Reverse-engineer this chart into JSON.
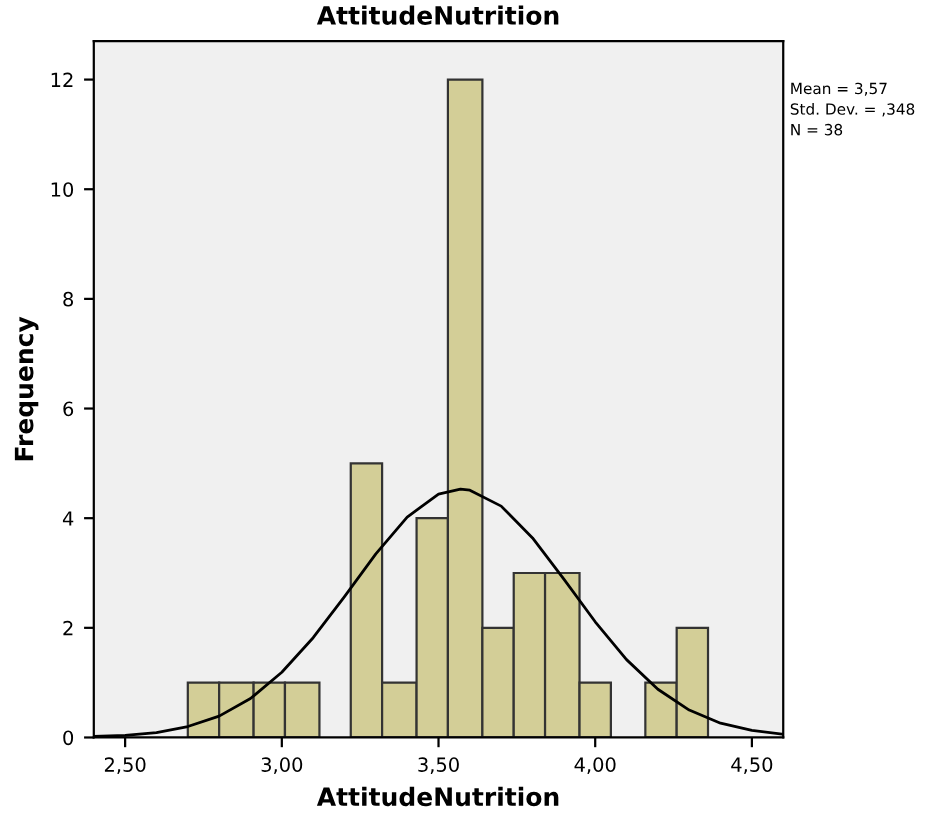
{
  "chart_data": {
    "type": "histogram",
    "title": "AttitudeNutrition",
    "xlabel": "AttitudeNutrition",
    "ylabel": "Frequency",
    "series": [
      {
        "color": "#d3ce97",
        "bins": [
          2.7,
          2.8,
          2.91,
          3.01,
          3.12,
          3.22,
          3.32,
          3.43,
          3.53,
          3.64,
          3.74,
          3.84,
          3.95,
          4.05,
          4.16,
          4.26,
          4.36
        ],
        "values": [
          1,
          1,
          1,
          1,
          0,
          5,
          1,
          4,
          12,
          2,
          3,
          3,
          1,
          0,
          1,
          2
        ]
      },
      {
        "type": "line",
        "color": "#000000",
        "x": [
          2.4,
          2.5,
          2.6,
          2.7,
          2.8,
          2.9,
          3.0,
          3.1,
          3.2,
          3.3,
          3.4,
          3.5,
          3.57,
          3.6,
          3.7,
          3.8,
          3.9,
          4.0,
          4.1,
          4.2,
          4.3,
          4.4,
          4.5,
          4.6
        ],
        "values": [
          0.02,
          0.04,
          0.09,
          0.2,
          0.39,
          0.71,
          1.19,
          1.82,
          2.57,
          3.35,
          4.02,
          4.44,
          4.53,
          4.51,
          4.22,
          3.64,
          2.89,
          2.11,
          1.42,
          0.88,
          0.5,
          0.26,
          0.13,
          0.06
        ]
      }
    ],
    "xlim": [
      2.4,
      4.6
    ],
    "ylim": [
      0,
      12.7
    ],
    "xticks": [
      {
        "value": 2.5,
        "label": "2,50"
      },
      {
        "value": 3.0,
        "label": "3,00"
      },
      {
        "value": 3.5,
        "label": "3,50"
      },
      {
        "value": 4.0,
        "label": "4,00"
      },
      {
        "value": 4.5,
        "label": "4,50"
      }
    ],
    "yticks": [
      0,
      2,
      4,
      6,
      8,
      10,
      12
    ],
    "annotations": [
      "Mean = 3,57",
      "Std. Dev. = ,348",
      "N = 38"
    ],
    "grid": false,
    "legend": false
  }
}
